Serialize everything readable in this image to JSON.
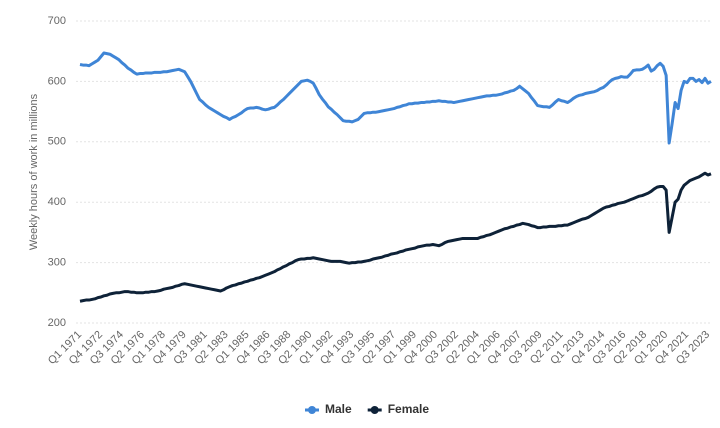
{
  "chart_data": {
    "type": "line",
    "ylabel": "Weekly hours of work in millions",
    "categories": [
      "Q1 1971",
      null,
      null,
      null,
      null,
      null,
      null,
      "Q4 1972",
      null,
      null,
      null,
      null,
      null,
      null,
      "Q3 1974",
      null,
      null,
      null,
      null,
      null,
      null,
      "Q2 1976",
      null,
      null,
      null,
      null,
      null,
      null,
      "Q1 1978",
      null,
      null,
      null,
      null,
      null,
      null,
      "Q4 1979",
      null,
      null,
      null,
      null,
      null,
      null,
      "Q3 1981",
      null,
      null,
      null,
      null,
      null,
      null,
      "Q2 1983",
      null,
      null,
      null,
      null,
      null,
      null,
      "Q1 1985",
      null,
      null,
      null,
      null,
      null,
      null,
      "Q4 1986",
      null,
      null,
      null,
      null,
      null,
      null,
      "Q3 1988",
      null,
      null,
      null,
      null,
      null,
      null,
      "Q2 1990",
      null,
      null,
      null,
      null,
      null,
      null,
      "Q1 1992",
      null,
      null,
      null,
      null,
      null,
      null,
      "Q4 1993",
      null,
      null,
      null,
      null,
      null,
      null,
      "Q3 1995",
      null,
      null,
      null,
      null,
      null,
      null,
      "Q2 1997",
      null,
      null,
      null,
      null,
      null,
      null,
      "Q1 1999",
      null,
      null,
      null,
      null,
      null,
      null,
      "Q4 2000",
      null,
      null,
      null,
      null,
      null,
      null,
      "Q3 2002",
      null,
      null,
      null,
      null,
      null,
      null,
      "Q2 2004",
      null,
      null,
      null,
      null,
      null,
      null,
      "Q1 2006",
      null,
      null,
      null,
      null,
      null,
      null,
      "Q4 2007",
      null,
      null,
      null,
      null,
      null,
      null,
      "Q3 2009",
      null,
      null,
      null,
      null,
      null,
      null,
      "Q2 2011",
      null,
      null,
      null,
      null,
      null,
      null,
      "Q1 2013",
      null,
      null,
      null,
      null,
      null,
      null,
      "Q4 2014",
      null,
      null,
      null,
      null,
      null,
      null,
      "Q3 2016",
      null,
      null,
      null,
      null,
      null,
      null,
      "Q2 2018",
      null,
      null,
      null,
      null,
      null,
      null,
      "Q1 2020",
      null,
      null,
      null,
      null,
      null,
      null,
      "Q4 2021",
      null,
      null,
      null,
      null,
      null,
      null,
      "Q3 2023",
      null
    ],
    "series": [
      {
        "name": "Male",
        "color": "#3f85d6",
        "values": [
          628,
          627,
          627,
          626,
          629,
          632,
          635,
          641,
          647,
          646,
          645,
          642,
          639,
          636,
          631,
          627,
          622,
          619,
          615,
          612,
          613,
          613,
          614,
          614,
          614,
          615,
          615,
          615,
          616,
          616,
          617,
          618,
          619,
          620,
          618,
          616,
          608,
          600,
          590,
          580,
          570,
          566,
          561,
          557,
          554,
          551,
          548,
          545,
          542,
          540,
          537,
          540,
          542,
          545,
          548,
          552,
          555,
          556,
          556,
          557,
          556,
          554,
          553,
          554,
          556,
          557,
          561,
          566,
          570,
          575,
          580,
          585,
          590,
          595,
          600,
          601,
          602,
          600,
          597,
          588,
          578,
          571,
          565,
          558,
          554,
          549,
          545,
          540,
          535,
          534,
          534,
          533,
          535,
          537,
          542,
          547,
          548,
          548,
          549,
          549,
          550,
          551,
          552,
          553,
          554,
          555,
          557,
          558,
          560,
          561,
          563,
          563,
          564,
          564,
          565,
          565,
          566,
          566,
          567,
          567,
          568,
          567,
          567,
          566,
          566,
          565,
          566,
          567,
          568,
          569,
          570,
          571,
          572,
          573,
          574,
          575,
          576,
          576,
          577,
          577,
          578,
          579,
          581,
          582,
          584,
          585,
          588,
          592,
          588,
          584,
          580,
          573,
          567,
          560,
          559,
          558,
          558,
          557,
          561,
          566,
          570,
          568,
          567,
          565,
          568,
          572,
          575,
          577,
          578,
          580,
          581,
          582,
          583,
          585,
          588,
          590,
          594,
          599,
          603,
          605,
          606,
          608,
          607,
          607,
          612,
          618,
          619,
          619,
          620,
          623,
          627,
          617,
          620,
          626,
          630,
          625,
          610,
          498,
          530,
          565,
          555,
          585,
          600,
          598,
          605,
          605,
          600,
          603,
          598,
          605,
          597,
          600
        ]
      },
      {
        "name": "Female",
        "color": "#0e2238",
        "values": [
          236,
          237,
          238,
          238,
          239,
          240,
          242,
          243,
          245,
          246,
          248,
          249,
          250,
          250,
          251,
          252,
          252,
          251,
          251,
          250,
          250,
          250,
          251,
          251,
          252,
          252,
          253,
          254,
          256,
          257,
          258,
          259,
          261,
          262,
          264,
          265,
          264,
          263,
          262,
          261,
          260,
          259,
          258,
          257,
          256,
          255,
          254,
          253,
          255,
          258,
          260,
          262,
          263,
          265,
          266,
          268,
          269,
          271,
          272,
          274,
          275,
          277,
          279,
          281,
          283,
          285,
          288,
          290,
          293,
          295,
          298,
          300,
          303,
          305,
          306,
          306,
          307,
          307,
          308,
          307,
          306,
          305,
          304,
          303,
          302,
          302,
          302,
          302,
          301,
          300,
          299,
          300,
          300,
          301,
          301,
          302,
          303,
          304,
          306,
          307,
          308,
          309,
          311,
          312,
          314,
          315,
          316,
          318,
          319,
          321,
          322,
          323,
          324,
          326,
          327,
          328,
          329,
          329,
          330,
          329,
          328,
          330,
          333,
          335,
          336,
          337,
          338,
          339,
          340,
          340,
          340,
          340,
          340,
          340,
          342,
          343,
          345,
          346,
          348,
          350,
          352,
          354,
          356,
          357,
          359,
          360,
          362,
          363,
          365,
          364,
          363,
          361,
          360,
          358,
          358,
          359,
          359,
          360,
          360,
          360,
          361,
          361,
          362,
          362,
          364,
          366,
          368,
          370,
          372,
          373,
          375,
          378,
          381,
          384,
          387,
          390,
          392,
          393,
          395,
          396,
          398,
          399,
          400,
          402,
          404,
          406,
          408,
          410,
          411,
          413,
          415,
          418,
          422,
          425,
          426,
          426,
          420,
          350,
          375,
          400,
          405,
          420,
          428,
          432,
          436,
          438,
          440,
          442,
          445,
          448,
          445,
          447
        ]
      }
    ],
    "ylim": [
      200,
      700
    ],
    "yticks": [
      200,
      300,
      400,
      500,
      600,
      700
    ],
    "grid": true,
    "legend": "bottom"
  }
}
